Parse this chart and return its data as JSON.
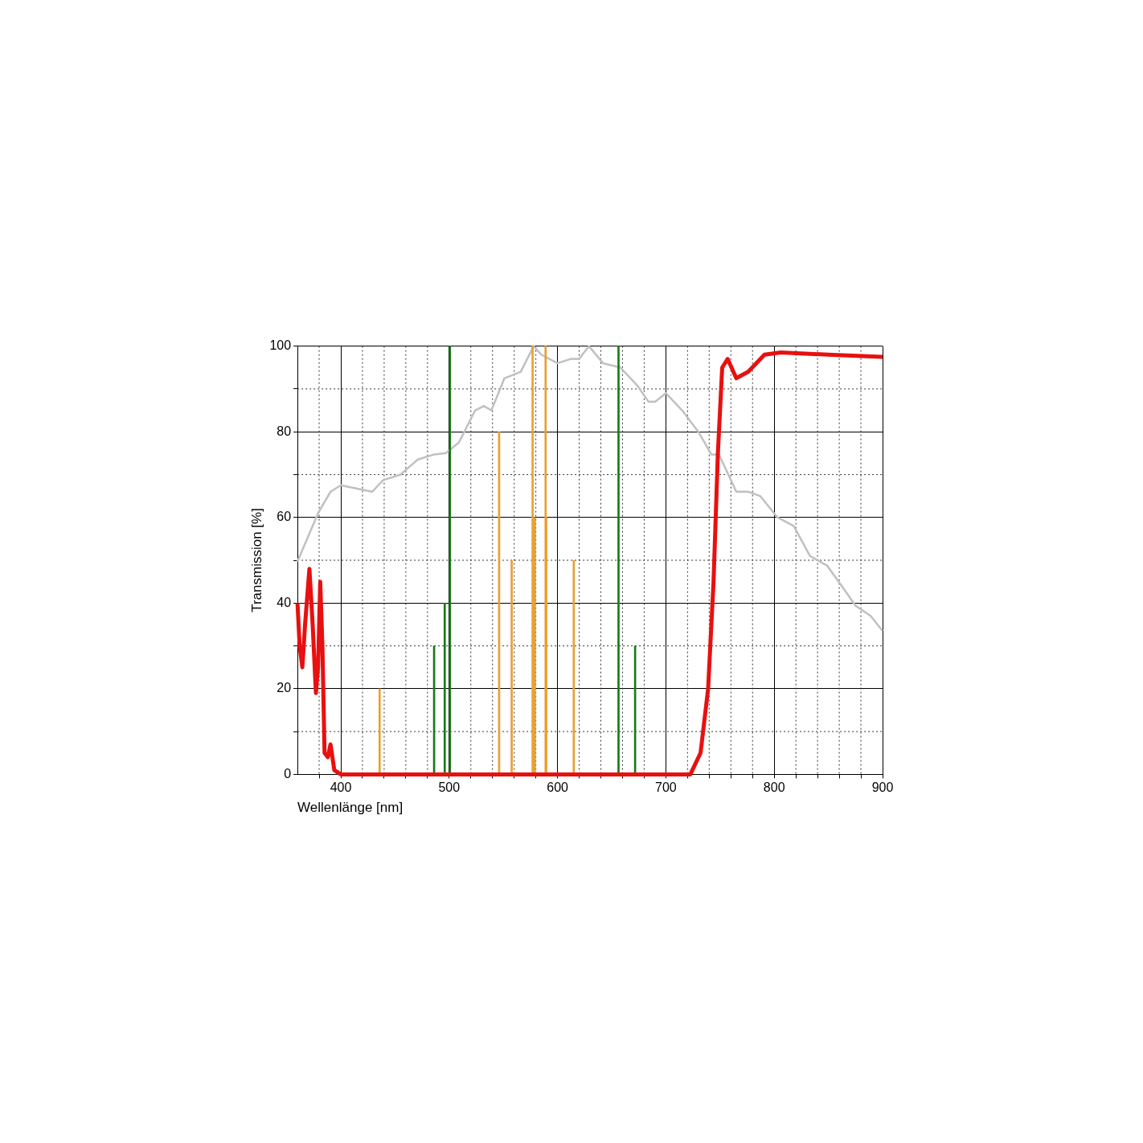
{
  "chart_data": {
    "type": "line",
    "xlabel": "Wellenlänge [nm]",
    "ylabel": "Transmission [%]",
    "xlim": [
      360,
      900
    ],
    "ylim": [
      0,
      100
    ],
    "xticks": [
      {
        "value": 380,
        "label": null
      },
      400,
      {
        "value": 420,
        "label": null
      },
      {
        "value": 440,
        "label": null
      },
      {
        "value": 460,
        "label": null
      },
      {
        "value": 480,
        "label": null
      },
      500,
      {
        "value": 520,
        "label": null
      },
      {
        "value": 540,
        "label": null
      },
      {
        "value": 560,
        "label": null
      },
      {
        "value": 580,
        "label": null
      },
      600,
      {
        "value": 620,
        "label": null
      },
      {
        "value": 640,
        "label": null
      },
      {
        "value": 660,
        "label": null
      },
      {
        "value": 680,
        "label": null
      },
      700,
      {
        "value": 720,
        "label": null
      },
      {
        "value": 740,
        "label": null
      },
      {
        "value": 760,
        "label": null
      },
      {
        "value": 780,
        "label": null
      },
      800,
      {
        "value": 820,
        "label": null
      },
      {
        "value": 840,
        "label": null
      },
      {
        "value": 860,
        "label": null
      },
      {
        "value": 880,
        "label": null
      },
      900
    ],
    "yticks": [
      0,
      {
        "value": 10,
        "label": null
      },
      20,
      {
        "value": 30,
        "label": null
      },
      40,
      {
        "value": 50,
        "label": null
      },
      60,
      {
        "value": 70,
        "label": null
      },
      80,
      {
        "value": 90,
        "label": null
      },
      100
    ],
    "grid": true,
    "marker": "none",
    "line_style": "solid",
    "series": [
      {
        "color": "#c0c0c0",
        "x": [
          360,
          379,
          390.5,
          400,
          429,
          439,
          455,
          471,
          486,
          497,
          509,
          524,
          532,
          539,
          551,
          566,
          578,
          585,
          600,
          612,
          620,
          629,
          642,
          658,
          673,
          684,
          690,
          700,
          715,
          730,
          742,
          749,
          765,
          776,
          787,
          803,
          818,
          833,
          849,
          864,
          875,
          889,
          900
        ],
        "values": [
          49.7,
          61,
          66,
          67.5,
          66,
          68.7,
          70,
          73.5,
          74.7,
          75,
          77.5,
          85,
          86,
          85,
          92.5,
          94,
          100,
          98,
          96,
          97,
          97,
          100,
          96,
          95,
          91,
          87,
          87,
          89,
          85,
          80,
          74.7,
          74.7,
          66,
          66,
          65,
          60,
          58,
          51,
          48.7,
          43.4,
          39.4,
          37,
          33.5
        ]
      },
      {
        "type": "bar",
        "color": "#e8a030",
        "x": [
          435.8,
          546.1,
          557.7,
          577,
          579,
          589,
          589.6,
          615
        ],
        "values": [
          20,
          80,
          50,
          100,
          60,
          100,
          60,
          50
        ]
      },
      {
        "type": "bar",
        "color": "#1a7a1a",
        "x": [
          486.1,
          495.9,
          500.7,
          656.3,
          671.6
        ],
        "values": [
          30,
          40,
          100,
          100,
          30
        ]
      },
      {
        "color": "#e81010",
        "x": [
          360,
          362,
          364.5,
          367,
          371,
          374,
          377,
          379,
          381,
          383,
          385,
          388,
          390.5,
          394,
          400,
          450,
          500,
          550,
          600,
          650,
          700,
          722.6,
          732,
          739,
          744,
          748,
          752,
          757,
          765,
          776,
          791,
          806,
          850,
          900
        ],
        "values": [
          40,
          30,
          25,
          35,
          48,
          35,
          19,
          25,
          45,
          30,
          5,
          4,
          7,
          1,
          0,
          0,
          0,
          0,
          0,
          0,
          0,
          0,
          5,
          20,
          45,
          75,
          95,
          97,
          92.5,
          94,
          98,
          98.5,
          98,
          97.5
        ]
      }
    ]
  }
}
